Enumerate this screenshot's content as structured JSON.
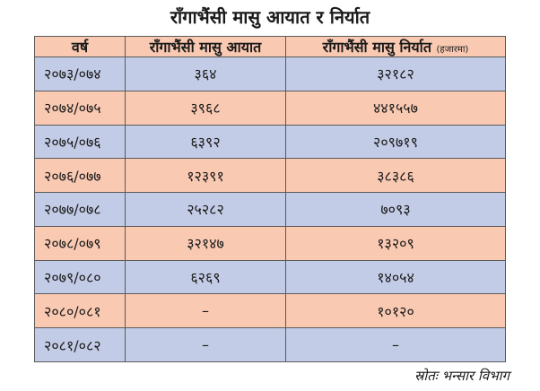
{
  "title": "राँगाभैंसी मासु आयात र निर्यात",
  "table": {
    "headers": {
      "year": "वर्ष",
      "import": "राँगाभैंसी मासु आयात",
      "export": "राँगाभैंसी मासु निर्यात",
      "unit": "(हजारमा)"
    },
    "rows": [
      {
        "year": "२०७३/०७४",
        "import": "३६४",
        "export": "३२१८२",
        "color": "#c3cce6"
      },
      {
        "year": "२०७४/०७५",
        "import": "३९६८",
        "export": "४४१५५७",
        "color": "#f9c9b2"
      },
      {
        "year": "२०७५/०७६",
        "import": "६३९२",
        "export": "२०९७१९",
        "color": "#c3cce6"
      },
      {
        "year": "२०७६/०७७",
        "import": "१२३९१",
        "export": "३८३८६",
        "color": "#f9c9b2"
      },
      {
        "year": "२०७७/०७८",
        "import": "२५२८२",
        "export": "७०९३",
        "color": "#c3cce6"
      },
      {
        "year": "२०७८/०७९",
        "import": "३२१४७",
        "export": "१३२०९",
        "color": "#f9c9b2"
      },
      {
        "year": "२०७९/०८०",
        "import": "६२६९",
        "export": "१४०५४",
        "color": "#c3cce6"
      },
      {
        "year": "२०८०/०८१",
        "import": "–",
        "export": "१०१२०",
        "color": "#f9c9b2"
      },
      {
        "year": "२०८१/०८२",
        "import": "–",
        "export": "–",
        "color": "#c3cce6"
      }
    ]
  },
  "source": "स्रोतः भन्सार विभाग"
}
